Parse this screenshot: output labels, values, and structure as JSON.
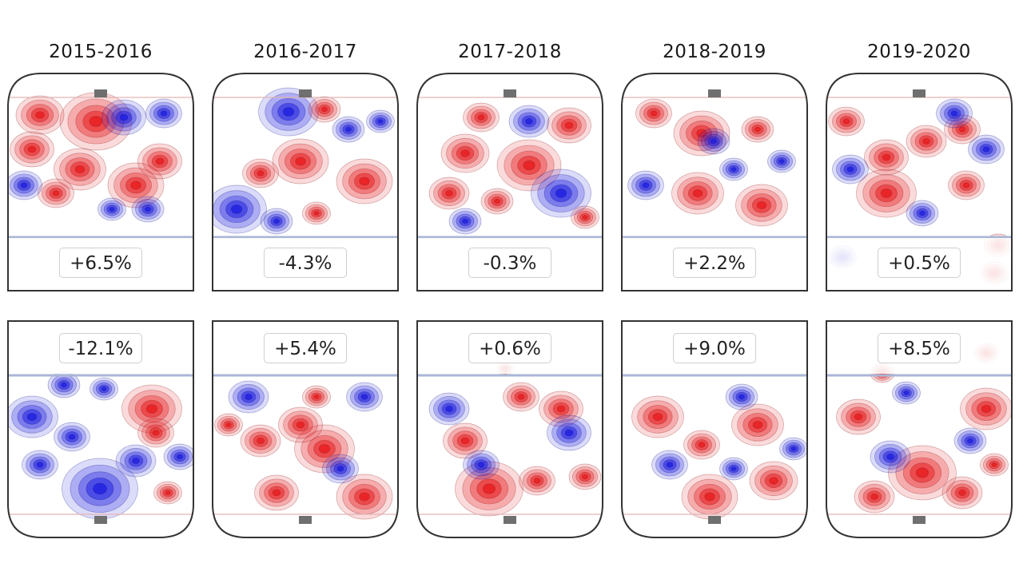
{
  "chart_data": {
    "type": "heatmap",
    "seasons": [
      "2015-2016",
      "2016-2017",
      "2017-2018",
      "2018-2019",
      "2019-2020"
    ],
    "rows": [
      {
        "zone": "top",
        "values": [
          "+6.5%",
          "-4.3%",
          "-0.3%",
          "+2.2%",
          "+0.5%"
        ]
      },
      {
        "zone": "bottom",
        "values": [
          "-12.1%",
          "+5.4%",
          "+0.6%",
          "+9.0%",
          "+8.5%"
        ]
      }
    ],
    "colors": {
      "positive": "#e8191c",
      "negative": "#1c1ce0"
    }
  }
}
